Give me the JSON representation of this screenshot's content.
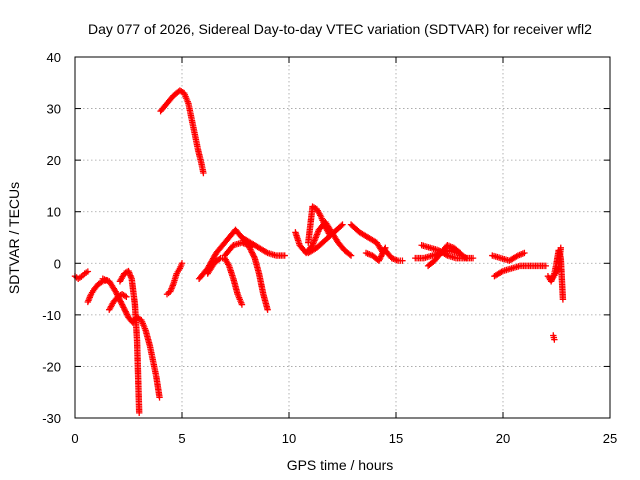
{
  "chart_data": {
    "type": "scatter",
    "title": "Day 077 of 2026, Sidereal Day-to-day VTEC variation (SDTVAR) for receiver wfl2",
    "xlabel": "GPS time / hours",
    "ylabel": "SDTVAR / TECUs",
    "xlim": [
      0,
      25
    ],
    "ylim": [
      -30,
      40
    ],
    "xticks": [
      "0",
      "5",
      "10",
      "15",
      "20",
      "25"
    ],
    "yticks": [
      "40",
      "30",
      "20",
      "10",
      "0",
      "-10",
      "-20",
      "-30"
    ],
    "grid": true,
    "marker": "plus",
    "color": "#ff0000",
    "series": [
      {
        "x": [
          0.0,
          0.15,
          0.3,
          0.45,
          0.6
        ],
        "y": [
          -2.5,
          -3.0,
          -2.6,
          -2.0,
          -1.6
        ]
      },
      {
        "x": [
          0.6,
          0.75,
          0.9,
          1.1,
          1.3,
          1.5
        ],
        "y": [
          -7.5,
          -6.0,
          -5.0,
          -4.0,
          -3.5,
          -3.3
        ]
      },
      {
        "x": [
          1.3,
          1.6,
          1.9,
          2.2,
          2.5,
          2.7,
          2.9,
          3.1,
          3.3,
          3.5,
          3.65,
          3.8,
          3.95
        ],
        "y": [
          -3.0,
          -3.5,
          -5.5,
          -8.0,
          -10.5,
          -11.5,
          -10.5,
          -11.0,
          -13.0,
          -16.0,
          -19.0,
          -22.0,
          -26.0
        ]
      },
      {
        "x": [
          1.6,
          1.8,
          2.0,
          2.2,
          2.4
        ],
        "y": [
          -9.0,
          -7.5,
          -6.5,
          -6.0,
          -6.5
        ]
      },
      {
        "x": [
          2.1,
          2.3,
          2.5,
          2.65,
          2.8,
          2.9,
          2.95,
          3.0
        ],
        "y": [
          -3.5,
          -2.0,
          -1.5,
          -3.0,
          -8.0,
          -15.0,
          -22.0,
          -29.0
        ]
      },
      {
        "x": [
          4.3,
          4.45,
          4.6,
          4.75,
          4.9,
          5.0
        ],
        "y": [
          -6.0,
          -5.5,
          -4.0,
          -2.0,
          -1.0,
          0.0
        ]
      },
      {
        "x": [
          4.0,
          4.3,
          4.6,
          4.9,
          5.1,
          5.3,
          5.45,
          5.6,
          5.75,
          5.9,
          6.0
        ],
        "y": [
          29.5,
          31.0,
          32.5,
          33.5,
          33.0,
          31.0,
          28.0,
          25.0,
          22.0,
          19.5,
          17.5
        ]
      },
      {
        "x": [
          5.8,
          6.2,
          6.6,
          7.0,
          7.3,
          7.5,
          7.7,
          7.9,
          8.1,
          8.3
        ],
        "y": [
          -3.0,
          -1.0,
          2.0,
          4.0,
          5.5,
          6.5,
          5.5,
          4.5,
          4.0,
          3.5
        ]
      },
      {
        "x": [
          6.2,
          6.5,
          6.8,
          7.0,
          7.2,
          7.4,
          7.6,
          7.8
        ],
        "y": [
          -2.0,
          0.0,
          1.0,
          1.0,
          -0.5,
          -3.0,
          -6.0,
          -8.0
        ]
      },
      {
        "x": [
          7.0,
          7.4,
          7.8,
          8.1,
          8.4,
          8.6,
          8.8,
          9.0
        ],
        "y": [
          1.5,
          3.5,
          4.0,
          3.5,
          1.0,
          -2.0,
          -6.0,
          -9.0
        ]
      },
      {
        "x": [
          7.8,
          8.2,
          8.6,
          9.0,
          9.4,
          9.8
        ],
        "y": [
          5.0,
          4.0,
          3.0,
          2.0,
          1.5,
          1.5
        ]
      },
      {
        "x": [
          10.3,
          10.5,
          10.8,
          11.1,
          11.4,
          11.7,
          12.0,
          12.3,
          12.6,
          12.9
        ],
        "y": [
          6.0,
          3.5,
          2.0,
          3.5,
          6.5,
          8.0,
          6.0,
          4.0,
          2.5,
          1.5
        ]
      },
      {
        "x": [
          10.9,
          11.1,
          11.3,
          11.5,
          11.7,
          11.9
        ],
        "y": [
          4.0,
          11.0,
          10.5,
          9.0,
          7.0,
          5.5
        ]
      },
      {
        "x": [
          10.9,
          11.3,
          11.7,
          12.1,
          12.5
        ],
        "y": [
          2.0,
          3.0,
          4.5,
          6.0,
          7.5
        ]
      },
      {
        "x": [
          12.9,
          13.3,
          13.7,
          14.1,
          14.4
        ],
        "y": [
          7.5,
          6.0,
          5.0,
          4.0,
          2.0
        ]
      },
      {
        "x": [
          13.6,
          13.9,
          14.2,
          14.5
        ],
        "y": [
          2.0,
          1.5,
          0.5,
          3.0
        ]
      },
      {
        "x": [
          14.5,
          14.8,
          15.1,
          15.3
        ],
        "y": [
          2.5,
          1.0,
          0.5,
          0.5
        ]
      },
      {
        "x": [
          15.9,
          16.3,
          16.7,
          17.1,
          17.5,
          17.9,
          18.3
        ],
        "y": [
          1.0,
          1.0,
          1.5,
          2.0,
          2.5,
          2.0,
          1.0
        ]
      },
      {
        "x": [
          16.5,
          16.8,
          17.1,
          17.4,
          17.7,
          18.0
        ],
        "y": [
          -0.5,
          0.5,
          2.0,
          3.5,
          3.0,
          2.0
        ]
      },
      {
        "x": [
          16.2,
          16.6,
          17.0,
          17.4,
          17.8,
          18.2,
          18.6
        ],
        "y": [
          3.5,
          3.0,
          2.5,
          1.5,
          1.0,
          1.0,
          1.0
        ]
      },
      {
        "x": [
          19.5,
          19.9,
          20.3,
          20.7,
          21.0
        ],
        "y": [
          1.5,
          1.0,
          0.5,
          1.5,
          2.0
        ]
      },
      {
        "x": [
          19.6,
          20.0,
          20.4,
          20.8,
          21.2,
          21.6,
          22.0
        ],
        "y": [
          -2.5,
          -1.5,
          -1.0,
          -0.5,
          -0.5,
          -0.5,
          -0.5
        ]
      },
      {
        "x": [
          22.1,
          22.25,
          22.4,
          22.5,
          22.6,
          22.7,
          22.8
        ],
        "y": [
          -2.5,
          -3.5,
          -2.0,
          0.0,
          2.5,
          1.0,
          -7.0
        ]
      },
      {
        "x": [
          22.3,
          22.45,
          22.6,
          22.7
        ],
        "y": [
          -3.0,
          -2.0,
          -1.0,
          3.0
        ]
      },
      {
        "x": [
          22.35,
          22.4
        ],
        "y": [
          -14.0,
          -14.8
        ]
      }
    ]
  }
}
